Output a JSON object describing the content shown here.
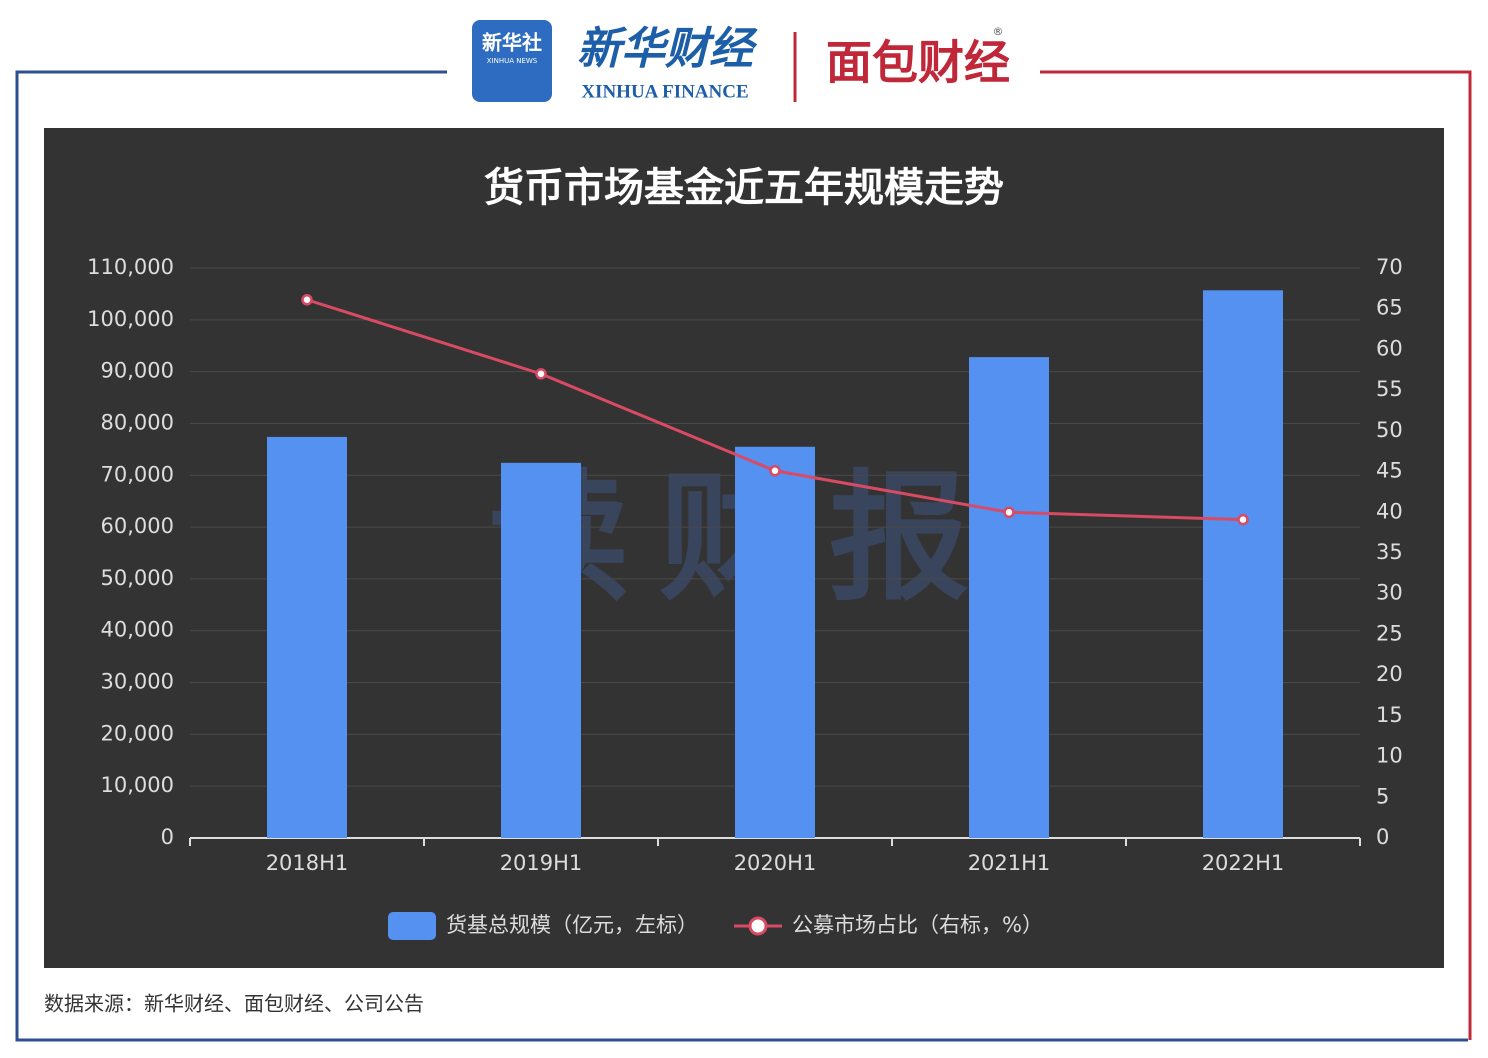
{
  "header": {
    "xinhua_news_cn": "新华社",
    "xinhua_news_en": "XINHUA NEWS",
    "xinhua_finance_cn": "新华财经",
    "xinhua_finance_en": "XINHUA FINANCE",
    "mianbao": "面包财经",
    "registered": "®"
  },
  "watermark": "读财报",
  "chart_data": {
    "type": "bar",
    "title": "货币市场基金近五年规模走势",
    "categories": [
      "2018H1",
      "2019H1",
      "2020H1",
      "2021H1",
      "2022H1"
    ],
    "series": [
      {
        "name": "货基总规模（亿元，左标）",
        "type": "bar",
        "color": "#5591f0",
        "values": [
          77400,
          72400,
          75500,
          92800,
          105700
        ]
      },
      {
        "name": "公募市场占比（右标，%）",
        "type": "line",
        "axis": "y2",
        "color": "#d94a64",
        "values": [
          66.1,
          57.0,
          45.1,
          40.0,
          39.1
        ]
      }
    ],
    "ylim": [
      0,
      110000
    ],
    "yticks": [
      0,
      {
        "value": 10000,
        "label": "10,000"
      },
      {
        "value": 20000,
        "label": "20,000"
      },
      {
        "value": 30000,
        "label": "30,000"
      },
      {
        "value": 40000,
        "label": "40,000"
      },
      {
        "value": 50000,
        "label": "50,000"
      },
      {
        "value": 60000,
        "label": "60,000"
      },
      {
        "value": 70000,
        "label": "70,000"
      },
      {
        "value": 80000,
        "label": "80,000"
      },
      {
        "value": 90000,
        "label": "90,000"
      },
      {
        "value": 100000,
        "label": "100,000"
      },
      {
        "value": 110000,
        "label": "110,000"
      }
    ],
    "y2lim": [
      0,
      70
    ],
    "y2ticks": [
      0,
      5,
      10,
      15,
      20,
      25,
      30,
      35,
      40,
      45,
      50,
      55,
      60,
      65,
      70
    ],
    "grid": true,
    "legend": "bottom"
  },
  "source": "数据来源：新华财经、面包财经、公司公告"
}
